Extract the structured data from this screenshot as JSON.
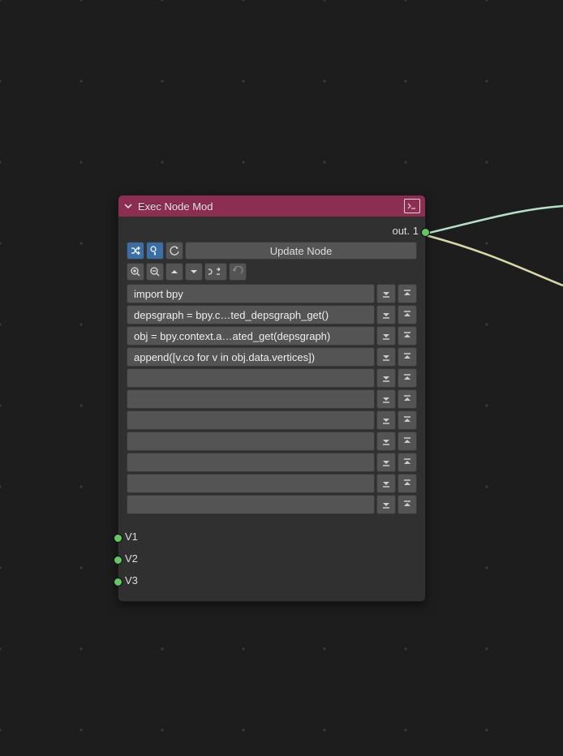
{
  "node": {
    "title": "Exec Node Mod",
    "header_bg": "#8b2e52",
    "output": {
      "label": "out. 1"
    },
    "update_button": "Update Node",
    "code_lines": [
      "import bpy",
      "depsgraph = bpy.c…ted_depsgraph_get()",
      "obj = bpy.context.a…ated_get(depsgraph)",
      "append([v.co for v in obj.data.vertices])",
      "",
      "",
      "",
      "",
      "",
      "",
      ""
    ],
    "inputs": [
      {
        "label": "V1"
      },
      {
        "label": "V2"
      },
      {
        "label": "V3"
      }
    ]
  },
  "colors": {
    "socket": "#63c763",
    "node_bg": "#303030",
    "button_bg": "#545454",
    "blue_btn": "#3a6ea5",
    "canvas_bg": "#1d1d1d"
  }
}
